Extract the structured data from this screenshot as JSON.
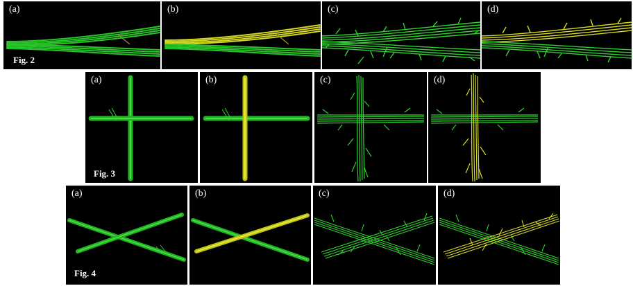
{
  "figures": [
    {
      "caption": "Fig. 2",
      "panels": [
        "(a)",
        "(b)",
        "(c)",
        "(d)"
      ]
    },
    {
      "caption": "Fig. 3",
      "panels": [
        "(a)",
        "(b)",
        "(c)",
        "(d)"
      ]
    },
    {
      "caption": "Fig. 4",
      "panels": [
        "(a)",
        "(b)",
        "(c)",
        "(d)"
      ]
    }
  ],
  "colors": {
    "fiber_green": "#2ed12e",
    "fiber_yellow": "#d8dc1e",
    "background": "#000000"
  }
}
